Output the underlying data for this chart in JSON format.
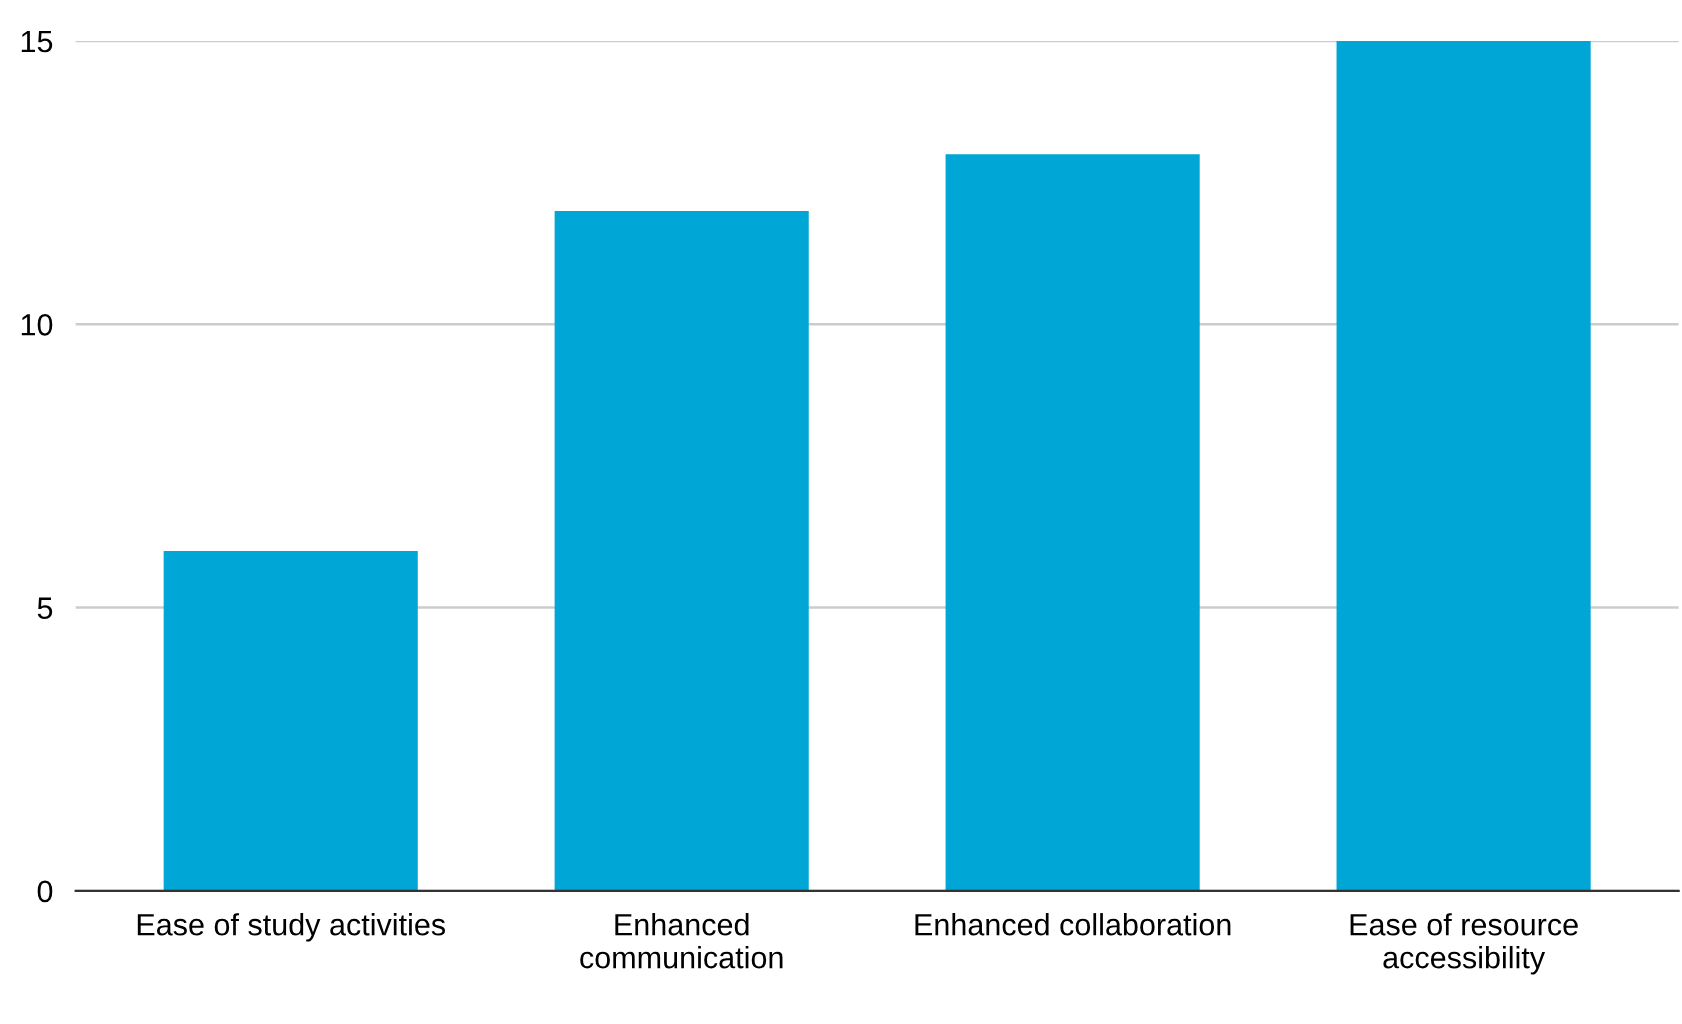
{
  "chart_data": {
    "type": "bar",
    "categories": [
      "Ease of study activities",
      "Enhanced\ncommunication",
      "Enhanced collaboration",
      "Ease of resource\naccessibility"
    ],
    "values": [
      6,
      12,
      13,
      15
    ],
    "color": "#00a6d6",
    "ylim": [
      0,
      15
    ],
    "yticks": [
      0,
      5,
      10,
      15
    ],
    "grid": "y"
  }
}
